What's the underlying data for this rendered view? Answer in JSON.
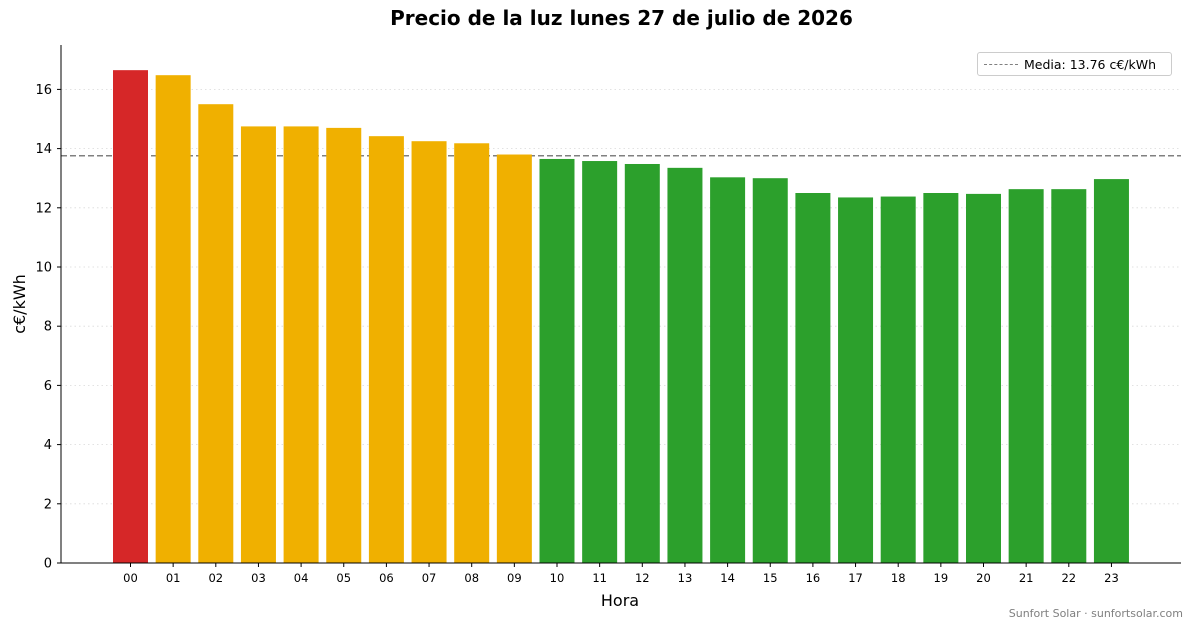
{
  "chart_data": {
    "type": "bar",
    "title": "Precio de la luz lunes 27 de julio de 2026",
    "xlabel": "Hora",
    "ylabel": "c€/kWh",
    "ylim": [
      0,
      17.5
    ],
    "yticks": [
      0,
      2,
      4,
      6,
      8,
      10,
      12,
      14,
      16
    ],
    "grid": "horizontal dotted",
    "categories": [
      "00",
      "01",
      "02",
      "03",
      "04",
      "05",
      "06",
      "07",
      "08",
      "09",
      "10",
      "11",
      "12",
      "13",
      "14",
      "15",
      "16",
      "17",
      "18",
      "19",
      "20",
      "21",
      "22",
      "23"
    ],
    "values": [
      16.65,
      16.48,
      15.5,
      14.75,
      14.75,
      14.7,
      14.42,
      14.25,
      14.18,
      13.8,
      13.65,
      13.58,
      13.48,
      13.35,
      13.03,
      13.0,
      12.5,
      12.35,
      12.38,
      12.5,
      12.47,
      12.63,
      12.63,
      12.97
    ],
    "bar_colors": [
      "#d62728",
      "#f0b000",
      "#f0b000",
      "#f0b000",
      "#f0b000",
      "#f0b000",
      "#f0b000",
      "#f0b000",
      "#f0b000",
      "#f0b000",
      "#2ca02c",
      "#2ca02c",
      "#2ca02c",
      "#2ca02c",
      "#2ca02c",
      "#2ca02c",
      "#2ca02c",
      "#2ca02c",
      "#2ca02c",
      "#2ca02c",
      "#2ca02c",
      "#2ca02c",
      "#2ca02c",
      "#2ca02c"
    ],
    "mean_line": {
      "value": 13.76,
      "label": "Media: 13.76 c€/kWh",
      "color": "#808080",
      "style": "dashed"
    },
    "legend_placement": "top-right"
  },
  "watermark": "Sunfort Solar · sunfortsolar.com"
}
